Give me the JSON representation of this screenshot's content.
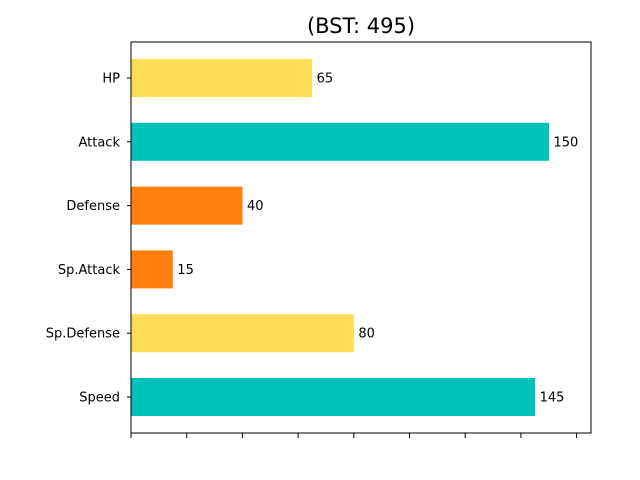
{
  "chart_data": {
    "type": "bar",
    "orientation": "horizontal",
    "title": "(BST: 495)",
    "xlabel": "",
    "ylabel": "",
    "categories": [
      "HP",
      "Attack",
      "Defense",
      "Sp.Attack",
      "Sp.Defense",
      "Speed"
    ],
    "values": [
      65,
      150,
      40,
      15,
      80,
      145
    ],
    "value_labels": [
      "65",
      "150",
      "40",
      "15",
      "80",
      "145"
    ],
    "bar_colors": [
      "#ffdd57",
      "#00c2b8",
      "#ff7f0e",
      "#ff7f0e",
      "#ffdd57",
      "#00c2b8"
    ],
    "xlim": [
      0,
      165
    ],
    "x_ticks_count": 9,
    "x_tick_labels_visible": false,
    "grid": false,
    "legend": "none"
  }
}
